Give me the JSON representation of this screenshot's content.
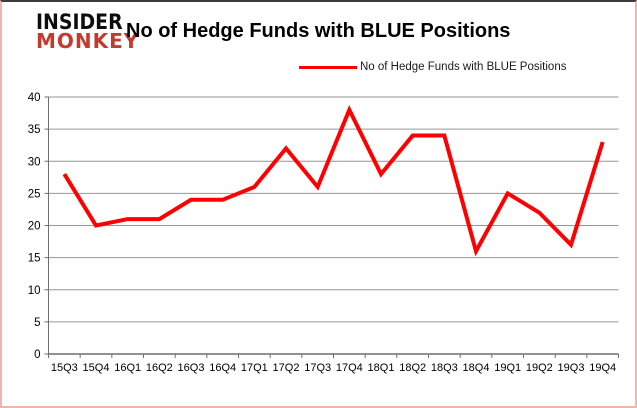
{
  "brand": {
    "line1": "INSIDER",
    "line2": "MONKEY"
  },
  "title": "No of Hedge Funds with BLUE Positions",
  "legend": {
    "label": "No of Hedge Funds with BLUE Positions",
    "swatch_color": "#ff0000"
  },
  "colors": {
    "series_line": "#ff0000",
    "gridline": "#969696",
    "axis": "#6e6e6e",
    "text": "#000000",
    "brand_red": "#c23b2e",
    "frame_border": "#f2b4b0"
  },
  "chart_data": {
    "type": "line",
    "title": "No of Hedge Funds with BLUE Positions",
    "categories": [
      "15Q3",
      "15Q4",
      "16Q1",
      "16Q2",
      "16Q3",
      "16Q4",
      "17Q1",
      "17Q2",
      "17Q3",
      "17Q4",
      "18Q1",
      "18Q2",
      "18Q3",
      "18Q4",
      "19Q1",
      "19Q2",
      "19Q3",
      "19Q4"
    ],
    "series": [
      {
        "name": "No of Hedge Funds with BLUE Positions",
        "color": "#ff0000",
        "values": [
          28,
          20,
          21,
          21,
          24,
          24,
          26,
          32,
          26,
          38,
          28,
          34,
          34,
          16,
          25,
          22,
          17,
          33
        ]
      }
    ],
    "xlabel": "",
    "ylabel": "",
    "ylim": [
      0,
      40
    ],
    "yticks": [
      0,
      5,
      10,
      15,
      20,
      25,
      30,
      35,
      40
    ],
    "grid": "horizontal",
    "legend_position": "top-center",
    "markers": false
  }
}
